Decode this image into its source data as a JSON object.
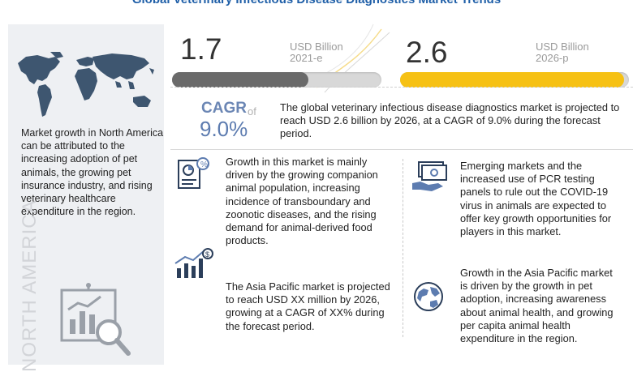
{
  "title": "Global Veterinary Infectious Disease Diagnostics Market Trends",
  "left_panel": {
    "text": "Market growth in North America can be attributed to the increasing adoption of pet animals, the growing pet insurance industry, and rising veterinary healthcare expenditure in the region.",
    "vertical_label": "NORTH AMERICA"
  },
  "stats": [
    {
      "value": "1.7",
      "unit": "USD Billion",
      "year": "2021-e",
      "fill_fraction": 0.65,
      "color": "#6a6a6a"
    },
    {
      "value": "2.6",
      "unit": "USD Billion",
      "year": "2026-p",
      "fill_fraction": 0.98,
      "color": "#f6c114"
    }
  ],
  "cagr": {
    "label": "CAGR",
    "of": "of",
    "value": "9.0%"
  },
  "summary": "The global veterinary infectious disease diagnostics market is projected to reach USD 2.6 billion by 2026, at a CAGR of 9.0% during the forecast period.",
  "sections": {
    "growth_drivers": "Growth in this market is mainly driven by the growing companion animal population, increasing incidence of transboundary and zoonotic diseases, and the rising demand for animal-derived food products.",
    "asia_pacific_projection": "The Asia Pacific market is projected to reach USD XX million by 2026, growing at a CAGR of XX% during the forecast period.",
    "emerging_markets": "Emerging markets and the increased use of PCR testing panels to rule out the COVID-19 virus in animals are expected to offer key growth opportunities for players in this market.",
    "asia_pacific_growth": "Growth in the Asia Pacific market is driven by the growth in pet adoption, increasing awareness about animal health, and growing per capita animal health expenditure in the region."
  },
  "colors": {
    "title": "#1f5fa8",
    "accent_blue": "#5d7cb0",
    "bar_yellow": "#f6c114",
    "bar_gray": "#6a6a6a"
  }
}
